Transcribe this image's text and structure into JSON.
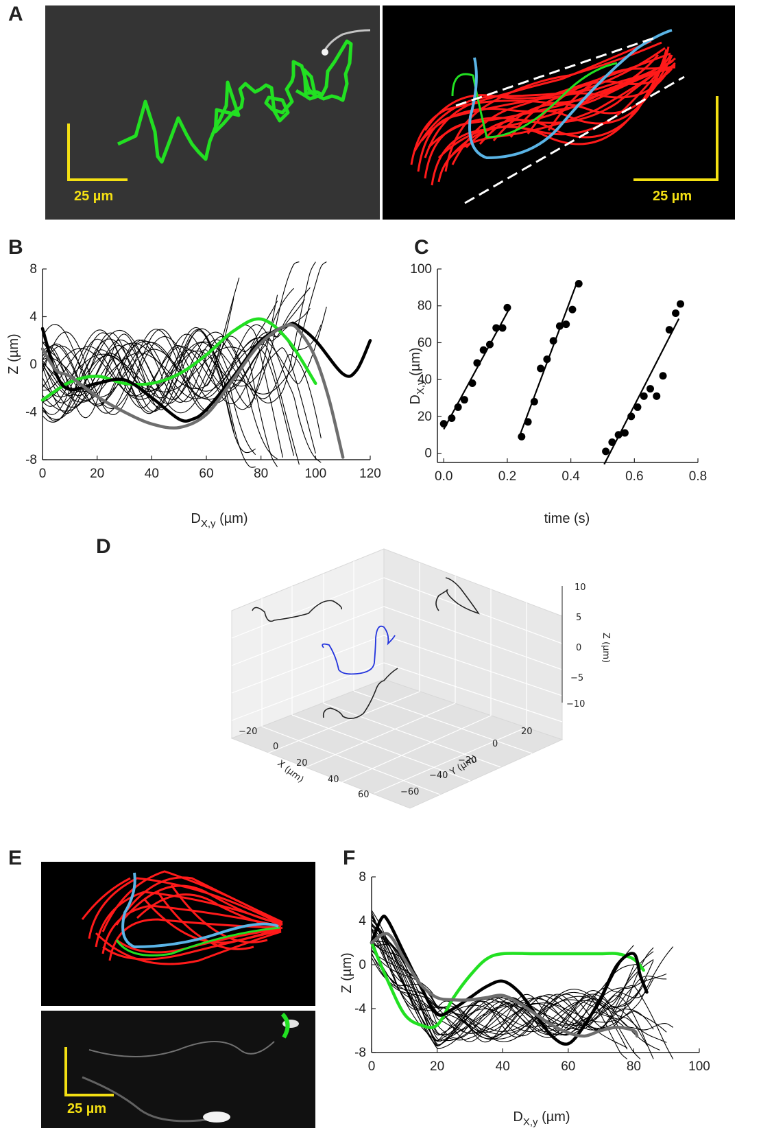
{
  "panels": {
    "A": "A",
    "B": "B",
    "C": "C",
    "D": "D",
    "E": "E",
    "F": "F"
  },
  "scale_bars": {
    "a_left": "25 µm",
    "a_right": "25 µm",
    "e": "25 µm"
  },
  "colors": {
    "trace_red": "#ff1a1a",
    "trace_green": "#22e022",
    "trace_blue": "#5ab4e6",
    "mean_black": "#000000",
    "mean_gray": "#6e6e6e",
    "blue3d": "#2233dd",
    "scalebar": "#f4e013"
  },
  "chart_data": [
    {
      "id": "B",
      "type": "line",
      "xlabel": "D_x,y (µm)",
      "ylabel": "Z (µm)",
      "xlim": [
        0,
        120
      ],
      "ylim": [
        -8,
        8
      ],
      "xticks": [
        0,
        20,
        40,
        60,
        80,
        100,
        120
      ],
      "yticks": [
        -8,
        -4,
        0,
        4,
        8
      ],
      "series": [
        {
          "style": "green",
          "x": [
            0,
            10,
            20,
            30,
            40,
            50,
            60,
            70,
            80,
            90,
            100
          ],
          "y": [
            -3,
            -1.5,
            -1,
            -1.6,
            -1.6,
            -0.8,
            0.8,
            2.8,
            3.8,
            2,
            -1.6
          ]
        },
        {
          "style": "black_thick",
          "x": [
            0,
            5,
            10,
            20,
            30,
            40,
            50,
            55,
            60,
            70,
            80,
            90,
            93,
            100,
            110,
            115,
            120
          ],
          "y": [
            3,
            -0.8,
            -2.1,
            -1.6,
            -1.3,
            -2.8,
            -4.6,
            -4.6,
            -3.8,
            -1,
            2,
            3.3,
            3.3,
            2,
            -0.8,
            -0.5,
            2
          ]
        },
        {
          "style": "gray_thick",
          "x": [
            0,
            5,
            10,
            20,
            30,
            40,
            50,
            60,
            70,
            80,
            90,
            95,
            100,
            105,
            110
          ],
          "y": [
            1.3,
            -0.5,
            -1,
            -2.7,
            -4,
            -5,
            -5.3,
            -4.2,
            -1.2,
            1.8,
            3.3,
            2.5,
            0.5,
            -3,
            -7.8
          ]
        }
      ],
      "thin_black_traces": "approximately 25 thin black traces oscillating between about -6 and +5 µm across D 0–105 µm"
    },
    {
      "id": "C",
      "type": "scatter",
      "xlabel": "time (s)",
      "ylabel": "D_x,y (µm)",
      "xlim": [
        -0.02,
        0.8
      ],
      "ylim": [
        -5,
        100
      ],
      "xticks": [
        0.0,
        0.2,
        0.4,
        0.6,
        0.8
      ],
      "yticks": [
        0,
        20,
        40,
        60,
        80,
        100
      ],
      "series": [
        {
          "name": "",
          "x": [
            0.0,
            0.025,
            0.045,
            0.065,
            0.09,
            0.105,
            0.125,
            0.145,
            0.165,
            0.185,
            0.2
          ],
          "y": [
            16,
            19,
            25,
            29,
            38,
            49,
            56,
            59,
            68,
            68,
            79
          ]
        },
        {
          "name": "",
          "x": [
            0.245,
            0.265,
            0.285,
            0.305,
            0.325,
            0.345,
            0.365,
            0.385,
            0.405,
            0.425
          ],
          "y": [
            9,
            17,
            28,
            46,
            51,
            61,
            69,
            70,
            78,
            92
          ]
        },
        {
          "name": "",
          "x": [
            0.51,
            0.53,
            0.55,
            0.57,
            0.59,
            0.61,
            0.63,
            0.65,
            0.67,
            0.69,
            0.71,
            0.73,
            0.745
          ],
          "y": [
            1,
            6,
            10,
            11,
            20,
            25,
            31,
            35,
            31,
            42,
            67,
            76,
            81
          ]
        }
      ],
      "fits": [
        {
          "x": [
            0.0,
            0.205
          ],
          "y": [
            13,
            78
          ]
        },
        {
          "x": [
            0.24,
            0.42
          ],
          "y": [
            10,
            93
          ]
        },
        {
          "x": [
            0.505,
            0.74
          ],
          "y": [
            -6,
            73
          ]
        }
      ]
    },
    {
      "id": "D",
      "type": "line",
      "xlabel": "X (µm)",
      "ylabel": "Y (µm)",
      "zlabel": "Z (µm)",
      "xticks": [
        -20,
        0,
        20,
        40,
        60
      ],
      "yticks": [
        20,
        0,
        -20,
        -40,
        -60
      ],
      "zticks": [
        10,
        5,
        0,
        -5,
        -10
      ],
      "series_colors": [
        "blue",
        "black",
        "black",
        "black"
      ]
    },
    {
      "id": "F",
      "type": "line",
      "xlabel": "D_x,y (µm)",
      "ylabel": "Z (µm)",
      "xlim": [
        0,
        100
      ],
      "ylim": [
        -8,
        8
      ],
      "xticks": [
        0,
        20,
        40,
        60,
        80,
        100
      ],
      "yticks": [
        -8,
        -4,
        0,
        4,
        8
      ],
      "series": [
        {
          "style": "green",
          "x": [
            0,
            5,
            10,
            15,
            20,
            25,
            30,
            35,
            40,
            50,
            60,
            70,
            75,
            80,
            83
          ],
          "y": [
            2,
            -1.5,
            -4.5,
            -5.5,
            -5.5,
            -3,
            -1,
            0.5,
            1,
            1,
            1,
            1,
            1,
            0.5,
            -0.5
          ]
        },
        {
          "style": "black_thick",
          "x": [
            0,
            3,
            5,
            10,
            15,
            20,
            25,
            30,
            35,
            40,
            45,
            50,
            55,
            60,
            65,
            70,
            75,
            80,
            82,
            84
          ],
          "y": [
            2,
            4.2,
            4,
            1,
            -2,
            -4.5,
            -4,
            -3,
            -2,
            -1.5,
            -2.5,
            -4.5,
            -6.5,
            -7.2,
            -5.5,
            -3,
            0,
            1,
            -1,
            -2.5
          ]
        },
        {
          "style": "gray_thick",
          "x": [
            0,
            5,
            10,
            15,
            20,
            25,
            30,
            35,
            40,
            45,
            50,
            55,
            60,
            65,
            70,
            75,
            80,
            81
          ],
          "y": [
            2,
            2.8,
            0.5,
            -1.8,
            -3,
            -3.2,
            -3.2,
            -3,
            -2.8,
            -3.5,
            -4.5,
            -5.5,
            -6.2,
            -6.5,
            -6,
            -5.7,
            -6,
            -6.5
          ]
        }
      ],
      "thin_black_traces": "approximately 25 thin black traces starting near +3 µm, dipping to about -6 µm and spreading to ±5 µm toward D 80–95 µm"
    }
  ]
}
